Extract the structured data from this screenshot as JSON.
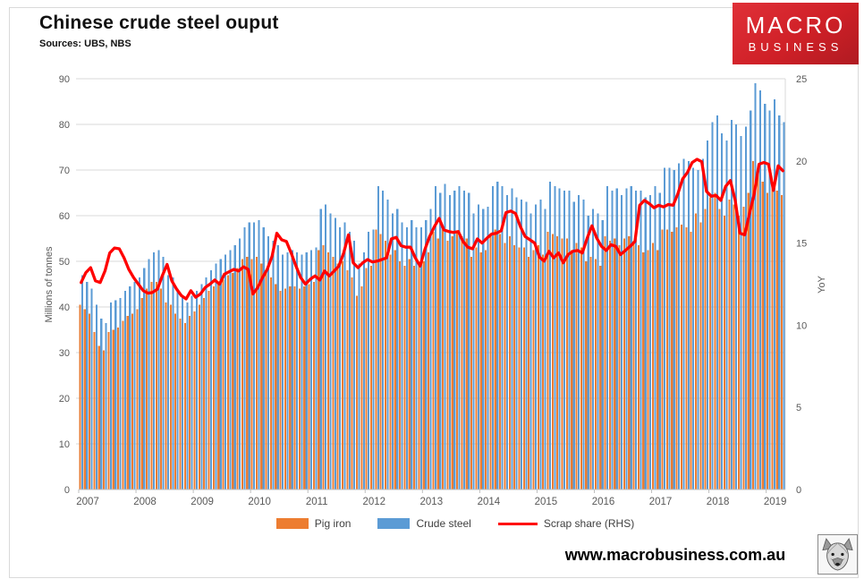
{
  "header": {
    "title": "Chinese crude steel ouput",
    "subtitle": "Sources: UBS, NBS"
  },
  "logo": {
    "line1": "MACRO",
    "line2": "BUSINESS",
    "bg": "#cf2027"
  },
  "footer": {
    "url": "www.macrobusiness.com.au"
  },
  "legend": {
    "items": [
      {
        "label": "Pig iron",
        "color": "#ED7D31",
        "type": "bar"
      },
      {
        "label": "Crude steel",
        "color": "#5B9BD5",
        "type": "bar"
      },
      {
        "label": "Scrap share (RHS)",
        "color": "#FF0000",
        "type": "line"
      }
    ]
  },
  "chart_data": {
    "type": "bar",
    "title": "Chinese crude steel ouput",
    "x_start": "2007-01",
    "x_end": "2019-04",
    "months_per_year": 12,
    "year_labels": [
      "2007",
      "2008",
      "2009",
      "2010",
      "2011",
      "2012",
      "2013",
      "2014",
      "2015",
      "2016",
      "2017",
      "2018",
      "2019"
    ],
    "left_axis": {
      "title": "Millions of tonnes",
      "min": 0,
      "max": 90,
      "step": 10
    },
    "right_axis": {
      "title": "YoY",
      "min": 0,
      "max": 25,
      "step": 5
    },
    "grid": true,
    "legend_position": "bottom",
    "colors": {
      "gridline": "#d9d9d9",
      "axis_line": "#bfbfbf",
      "tick_text": "#595959"
    },
    "series": [
      {
        "name": "Pig iron",
        "type": "bar",
        "axis": "left",
        "color": "#ED7D31",
        "values": [
          40.5,
          39.5,
          38.5,
          34.5,
          31.5,
          30.5,
          34.5,
          35,
          35.5,
          37,
          38,
          38.5,
          39.5,
          42,
          44,
          45.5,
          45.5,
          44,
          41,
          40.5,
          38.5,
          37.5,
          36.5,
          38,
          39,
          40.5,
          42,
          43.5,
          44.5,
          45.5,
          46,
          47,
          47.5,
          48.5,
          50.5,
          51,
          50.5,
          51,
          49.5,
          47.5,
          46.5,
          45,
          43.5,
          44,
          44.5,
          44.5,
          44,
          44.5,
          45,
          45.5,
          52.5,
          53.5,
          52,
          51,
          49.5,
          50,
          48,
          46.5,
          42.5,
          44.5,
          48.5,
          49,
          57,
          56,
          54.5,
          51.5,
          52.5,
          50,
          49,
          50.5,
          49,
          49,
          50,
          52,
          56.5,
          55,
          57,
          54.5,
          55.5,
          56.5,
          55.5,
          55,
          51,
          53,
          52,
          52.5,
          56,
          57,
          56,
          54,
          55.5,
          53.5,
          53,
          53,
          51,
          52.5,
          53.5,
          51.5,
          56.5,
          56,
          55.5,
          55,
          55,
          52.5,
          54,
          53,
          50,
          51,
          50.5,
          49,
          55.5,
          54.5,
          55,
          53.5,
          55,
          55.5,
          54.5,
          53.5,
          52,
          52.5,
          54,
          52.5,
          57,
          57,
          56.5,
          57.5,
          58,
          57.5,
          56.5,
          60.5,
          58.5,
          61.5,
          64,
          65,
          61.5,
          60,
          63.5,
          62.5,
          60,
          62,
          65,
          72,
          70,
          67.5,
          65,
          67.5,
          65.5,
          64.5
        ]
      },
      {
        "name": "Crude steel",
        "type": "bar",
        "axis": "left",
        "color": "#5B9BD5",
        "values": [
          47,
          45.5,
          44,
          40.5,
          37.5,
          36.5,
          41,
          41.5,
          42,
          43.5,
          44.5,
          45.5,
          46.5,
          48.5,
          50.5,
          52,
          52.5,
          51,
          47,
          46.5,
          44,
          42.5,
          41,
          42.5,
          43.5,
          45,
          46.5,
          48,
          49.5,
          50.5,
          51.5,
          52.5,
          53.5,
          55,
          57.5,
          58.5,
          58.5,
          59,
          57.5,
          55.5,
          54.5,
          53.5,
          51.5,
          52,
          52.5,
          52,
          51.5,
          52,
          52.5,
          53,
          61.5,
          62.5,
          60.5,
          59.5,
          57.5,
          58.5,
          56.5,
          54.5,
          49.5,
          52,
          56.5,
          57,
          66.5,
          65.5,
          63.5,
          60.5,
          61.5,
          58.5,
          57.5,
          59,
          57.5,
          57.5,
          59,
          61.5,
          66.5,
          65,
          67,
          64.5,
          65.5,
          66.5,
          65.5,
          65,
          60.5,
          62.5,
          61.5,
          62,
          66.5,
          67.5,
          66.5,
          64.5,
          66,
          64,
          63.5,
          63,
          60.5,
          62.5,
          63.5,
          61.5,
          67.5,
          66.5,
          66,
          65.5,
          65.5,
          63,
          64.5,
          63.5,
          60,
          61.5,
          60.5,
          59,
          66.5,
          65.5,
          66,
          64.5,
          66,
          66.5,
          65.5,
          65.5,
          64,
          64.5,
          66.5,
          65,
          70.5,
          70.5,
          70,
          71.5,
          72.5,
          72,
          70.5,
          70,
          72.5,
          76.5,
          80.5,
          82,
          78,
          76.5,
          81,
          80,
          77.5,
          79.5,
          83,
          89,
          87.5,
          84.5,
          83,
          85.5,
          82,
          80.5
        ]
      },
      {
        "name": "Scrap share (RHS)",
        "type": "line",
        "axis": "right",
        "color": "#FF0000",
        "values": [
          12.6,
          13.2,
          13.5,
          12.7,
          12.6,
          13.3,
          14.4,
          14.7,
          14.65,
          14.1,
          13.4,
          12.9,
          12.5,
          12.1,
          11.95,
          12,
          12.2,
          13,
          13.7,
          12.7,
          12.2,
          11.8,
          11.6,
          12.1,
          11.7,
          11.9,
          12.3,
          12.5,
          12.75,
          12.5,
          13.1,
          13.25,
          13.4,
          13.3,
          13.55,
          13.4,
          11.9,
          12.3,
          12.9,
          13.4,
          14.2,
          15.6,
          15.2,
          15.1,
          14.4,
          13.6,
          12.9,
          12.5,
          12.8,
          13,
          12.75,
          13.3,
          13,
          13.3,
          13.6,
          14.4,
          15.5,
          13.8,
          13.5,
          13.8,
          14,
          13.85,
          13.9,
          14,
          14.1,
          15.25,
          15.35,
          14.85,
          14.75,
          14.75,
          14.1,
          13.6,
          14.6,
          15.4,
          16,
          16.5,
          15.8,
          15.7,
          15.65,
          15.7,
          15.1,
          14.75,
          14.65,
          15.25,
          15,
          15.3,
          15.55,
          15.6,
          15.75,
          16.85,
          16.95,
          16.8,
          16,
          15.4,
          15.2,
          15,
          14.15,
          13.9,
          14.5,
          14.1,
          14.4,
          13.8,
          14.3,
          14.5,
          14.55,
          14.4,
          15.3,
          16.05,
          15.3,
          14.8,
          14.55,
          14.9,
          14.8,
          14.3,
          14.55,
          14.8,
          15.1,
          17.3,
          17.6,
          17.4,
          17.15,
          17.3,
          17.2,
          17.35,
          17.3,
          18,
          18.9,
          19.3,
          19.9,
          20.1,
          19.95,
          18.15,
          17.85,
          17.9,
          17.6,
          18.45,
          18.8,
          17.6,
          15.6,
          15.5,
          16.8,
          18,
          19.8,
          19.9,
          19.8,
          18.2,
          19.7,
          19.4
        ]
      }
    ]
  }
}
